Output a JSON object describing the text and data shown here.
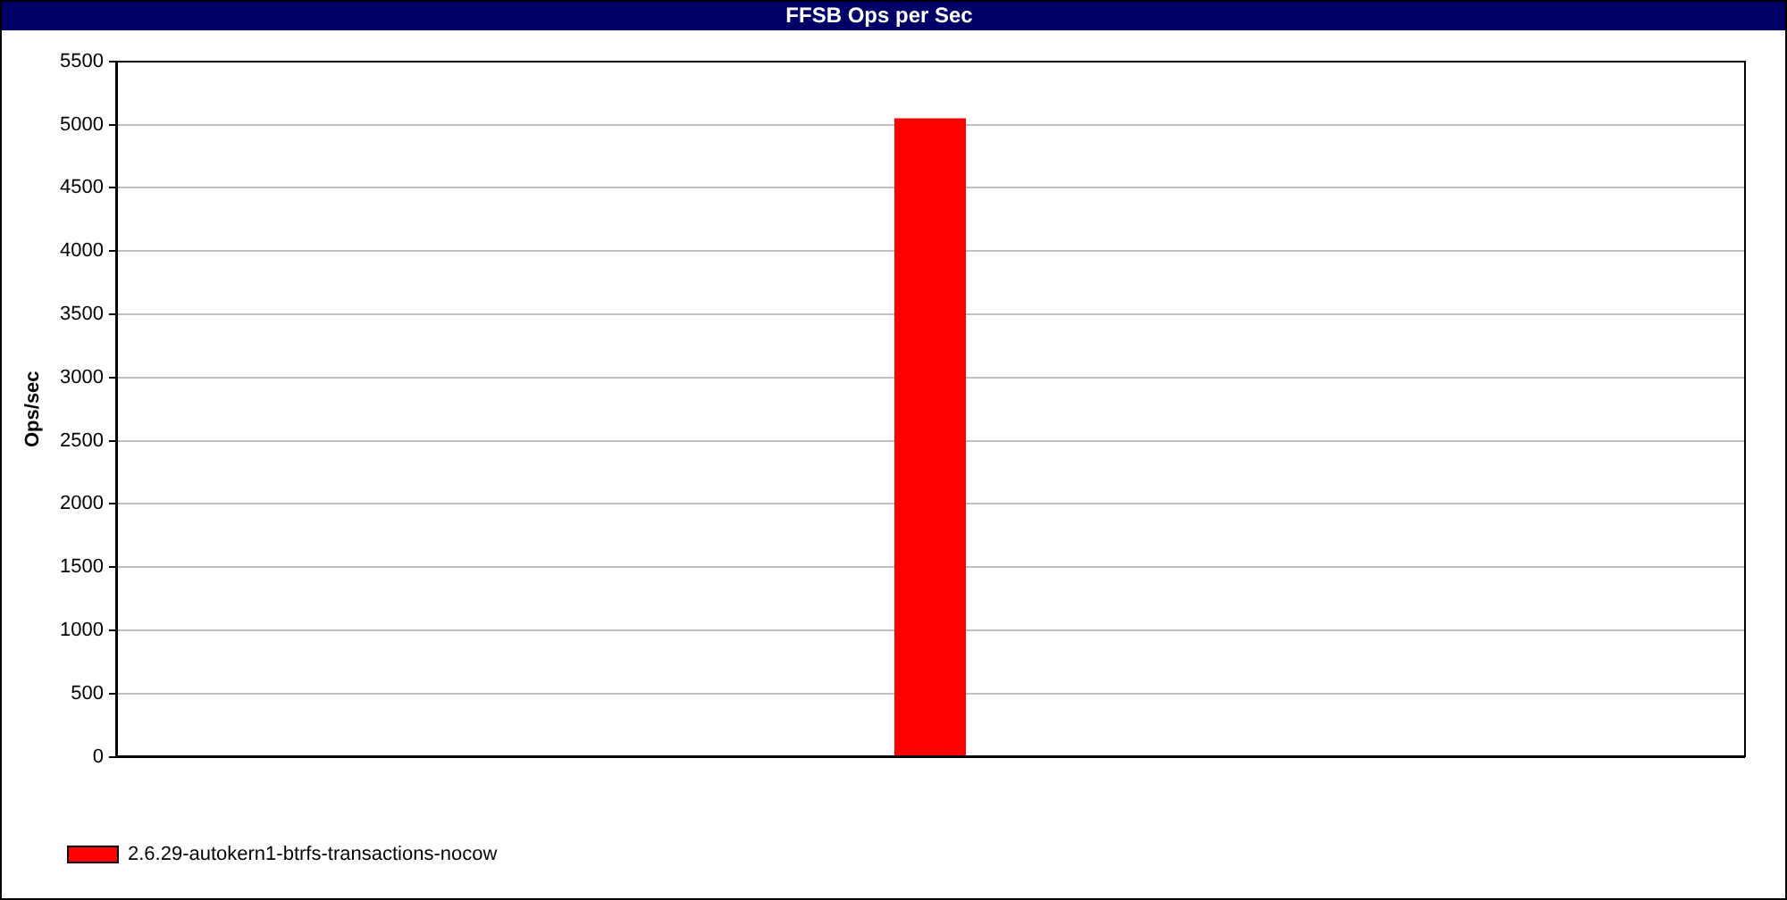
{
  "chart_data": {
    "type": "bar",
    "title": "FFSB Ops per Sec",
    "ylabel": "Ops/sec",
    "categories": [
      null
    ],
    "series": [
      {
        "name": "2.6.29-autokern1-btrfs-transactions-nocow",
        "color": "#ff0000",
        "values": [
          5050
        ]
      }
    ],
    "ylim": [
      0,
      5500
    ],
    "yticks": [
      0,
      500,
      1000,
      1500,
      2000,
      2500,
      3000,
      3500,
      4000,
      4500,
      5000,
      5500
    ],
    "grid": "y",
    "legend": "bottom left"
  }
}
